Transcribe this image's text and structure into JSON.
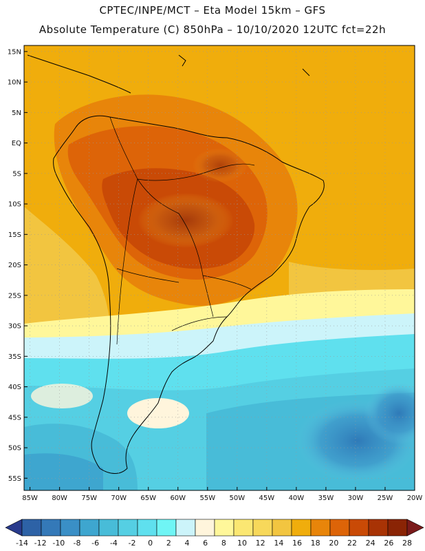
{
  "title": {
    "line1": "CPTEC/INPE/MCT –   Eta Model 15km – GFS",
    "line2": "Absolute Temperature (C) 850hPa – 10/10/2020 12UTC fct=22h"
  },
  "axes": {
    "lat_labels": [
      "15N",
      "10N",
      "5N",
      "EQ",
      "5S",
      "10S",
      "15S",
      "20S",
      "25S",
      "30S",
      "35S",
      "40S",
      "45S",
      "50S",
      "55S"
    ],
    "lon_labels": [
      "85W",
      "80W",
      "75W",
      "70W",
      "65W",
      "60W",
      "55W",
      "50W",
      "45W",
      "40W",
      "35W",
      "30W",
      "25W",
      "20W"
    ],
    "lat_range": [
      -57,
      16
    ],
    "lon_range": [
      -86,
      -20
    ]
  },
  "colorbar": {
    "labels": [
      "-14",
      "-12",
      "-10",
      "-8",
      "-6",
      "-4",
      "-2",
      "0",
      "2",
      "4",
      "6",
      "8",
      "10",
      "12",
      "14",
      "16",
      "18",
      "20",
      "22",
      "24",
      "26",
      "28"
    ],
    "colors": [
      "#283a8c",
      "#2d62a6",
      "#3479b8",
      "#3a8fc6",
      "#3ea6cf",
      "#48bcd8",
      "#55cfe3",
      "#5fe0ee",
      "#6ff5f5",
      "#ccf4fa",
      "#fff5dc",
      "#fff79a",
      "#fbe772",
      "#f7d85a",
      "#f2c540",
      "#f0ad0c",
      "#e8850a",
      "#dd6408",
      "#c94a06",
      "#a83305",
      "#8a2405",
      "#7a1a1a"
    ]
  }
}
